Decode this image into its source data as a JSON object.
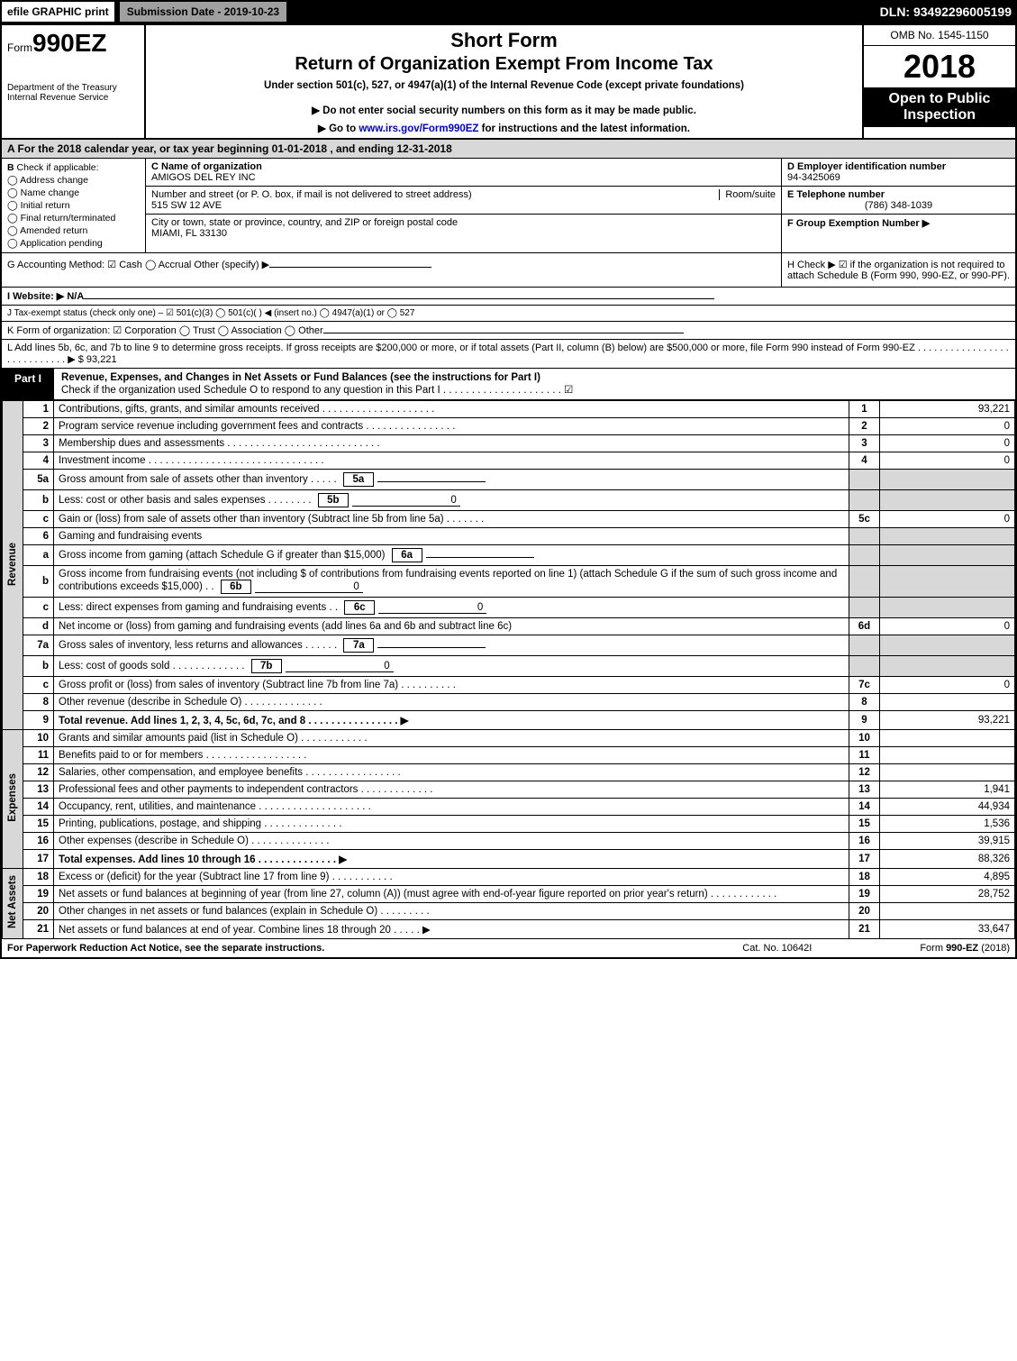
{
  "top": {
    "efile": "efile GRAPHIC print",
    "submission": "Submission Date - 2019-10-23",
    "dln": "DLN: 93492296005199"
  },
  "header": {
    "form_prefix": "Form",
    "form_num": "990EZ",
    "dept1": "Department of the Treasury",
    "dept2": "Internal Revenue Service",
    "short_form": "Short Form",
    "return": "Return of Organization Exempt From Income Tax",
    "under": "Under section 501(c), 527, or 4947(a)(1) of the Internal Revenue Code (except private foundations)",
    "donot": "▶ Do not enter social security numbers on this form as it may be made public.",
    "goto_pre": "▶ Go to ",
    "goto_link": "www.irs.gov/Form990EZ",
    "goto_post": " for instructions and the latest information.",
    "omb": "OMB No. 1545-1150",
    "year": "2018",
    "open": "Open to Public Inspection"
  },
  "row_a": "A  For the 2018 calendar year, or tax year beginning 01-01-2018           , and ending 12-31-2018",
  "b": {
    "label": "B",
    "check": "Check if applicable:",
    "items": [
      "Address change",
      "Name change",
      "Initial return",
      "Final return/terminated",
      "Amended return",
      "Application pending"
    ]
  },
  "c": {
    "name_lbl": "C Name of organization",
    "name": "AMIGOS DEL REY INC",
    "street_lbl": "Number and street (or P. O. box, if mail is not delivered to street address)",
    "room_lbl": "Room/suite",
    "street": "515 SW 12 AVE",
    "city_lbl": "City or town, state or province, country, and ZIP or foreign postal code",
    "city": "MIAMI, FL  33130"
  },
  "d": {
    "ein_lbl": "D Employer identification number",
    "ein": "94-3425069",
    "tel_lbl": "E Telephone number",
    "tel": "(786) 348-1039",
    "grp_lbl": "F Group Exemption Number   ▶"
  },
  "g": "G Accounting Method:   ☑ Cash   ◯ Accrual   Other (specify) ▶",
  "h": "H   Check ▶ ☑ if the organization is not required to attach Schedule B (Form 990, 990-EZ, or 990-PF).",
  "i": "I Website: ▶ N/A",
  "j": "J Tax-exempt status (check only one) – ☑ 501(c)(3)  ◯ 501(c)(  ) ◀ (insert no.)  ◯ 4947(a)(1) or  ◯ 527",
  "k": "K Form of organization:   ☑ Corporation   ◯ Trust   ◯ Association   ◯ Other",
  "l": "L Add lines 5b, 6c, and 7b to line 9 to determine gross receipts. If gross receipts are $200,000 or more, or if total assets (Part II, column (B) below) are $500,000 or more, file Form 990 instead of Form 990-EZ  .  .  .  .  .  .  .  .  .  .  .  .  .  .  .  .  .  .  .  .  .  .  .  .  .  .  .  .  ▶ $ 93,221",
  "part1": {
    "tag": "Part I",
    "title": "Revenue, Expenses, and Changes in Net Assets or Fund Balances (see the instructions for Part I)",
    "sub": "Check if the organization used Schedule O to respond to any question in this Part I  .  .  .  .  .  .  .  .  .  .  .  .  .  .  .  .  .  .  .  .  .  ☑"
  },
  "sections": {
    "revenue": "Revenue",
    "expenses": "Expenses",
    "netassets": "Net Assets"
  },
  "rows": [
    {
      "n": "1",
      "d": "Contributions, gifts, grants, and similar amounts received  .  .  .  .  .  .  .  .  .  .  .  .  .  .  .  .  .  .  .  .",
      "box": "1",
      "amt": "93,221"
    },
    {
      "n": "2",
      "d": "Program service revenue including government fees and contracts  .  .  .  .  .  .  .  .  .  .  .  .  .  .  .  .",
      "box": "2",
      "amt": "0"
    },
    {
      "n": "3",
      "d": "Membership dues and assessments  .  .  .  .  .  .  .  .  .  .  .  .  .  .  .  .  .  .  .  .  .  .  .  .  .  .  .",
      "box": "3",
      "amt": "0"
    },
    {
      "n": "4",
      "d": "Investment income  .  .  .  .  .  .  .  .  .  .  .  .  .  .  .  .  .  .  .  .  .  .  .  .  .  .  .  .  .  .  .",
      "box": "4",
      "amt": "0"
    },
    {
      "n": "5a",
      "d": "Gross amount from sale of assets other than inventory  .  .  .  .  .",
      "sub": "5a",
      "subamt": ""
    },
    {
      "n": "b",
      "d": "Less: cost or other basis and sales expenses  .  .  .  .  .  .  .  .",
      "sub": "5b",
      "subamt": "0"
    },
    {
      "n": "c",
      "d": "Gain or (loss) from sale of assets other than inventory (Subtract line 5b from line 5a)  .  .  .  .  .  .  .",
      "box": "5c",
      "amt": "0"
    },
    {
      "n": "6",
      "d": "Gaming and fundraising events"
    },
    {
      "n": "a",
      "d": "Gross income from gaming (attach Schedule G if greater than $15,000)",
      "sub": "6a",
      "subamt": ""
    },
    {
      "n": "b",
      "d": "Gross income from fundraising events (not including $                  of contributions from fundraising events reported on line 1) (attach Schedule G if the sum of such gross income and contributions exceeds $15,000)    .   .",
      "sub": "6b",
      "subamt": "0"
    },
    {
      "n": "c",
      "d": "Less: direct expenses from gaming and fundraising events    .   .",
      "sub": "6c",
      "subamt": "0"
    },
    {
      "n": "d",
      "d": "Net income or (loss) from gaming and fundraising events (add lines 6a and 6b and subtract line 6c)",
      "box": "6d",
      "amt": "0"
    },
    {
      "n": "7a",
      "d": "Gross sales of inventory, less returns and allowances  .  .  .  .  .  .",
      "sub": "7a",
      "subamt": ""
    },
    {
      "n": "b",
      "d": "Less: cost of goods sold       .  .  .  .  .  .  .  .  .  .  .  .  .",
      "sub": "7b",
      "subamt": "0"
    },
    {
      "n": "c",
      "d": "Gross profit or (loss) from sales of inventory (Subtract line 7b from line 7a)  .  .  .  .  .  .  .  .  .  .",
      "box": "7c",
      "amt": "0"
    },
    {
      "n": "8",
      "d": "Other revenue (describe in Schedule O)               .  .  .  .  .  .  .  .  .  .  .  .  .  .",
      "box": "8",
      "amt": ""
    },
    {
      "n": "9",
      "d": "Total revenue. Add lines 1, 2, 3, 4, 5c, 6d, 7c, and 8  .  .  .  .  .  .  .  .  .  .  .  .  .  .  .  .  ▶",
      "box": "9",
      "amt": "93,221",
      "bold": true
    }
  ],
  "exp_rows": [
    {
      "n": "10",
      "d": "Grants and similar amounts paid (list in Schedule O)         .  .  .  .  .  .  .  .  .  .  .  .",
      "box": "10",
      "amt": ""
    },
    {
      "n": "11",
      "d": "Benefits paid to or for members           .  .  .  .  .  .  .  .  .  .  .  .  .  .  .  .  .  .",
      "box": "11",
      "amt": ""
    },
    {
      "n": "12",
      "d": "Salaries, other compensation, and employee benefits  .  .  .  .  .  .  .  .  .  .  .  .  .  .  .  .  .",
      "box": "12",
      "amt": ""
    },
    {
      "n": "13",
      "d": "Professional fees and other payments to independent contractors  .  .  .  .  .  .  .  .  .  .  .  .  .",
      "box": "13",
      "amt": "1,941"
    },
    {
      "n": "14",
      "d": "Occupancy, rent, utilities, and maintenance  .  .  .  .  .  .  .  .  .  .  .  .  .  .  .  .  .  .  .  .",
      "box": "14",
      "amt": "44,934"
    },
    {
      "n": "15",
      "d": "Printing, publications, postage, and shipping          .  .  .  .  .  .  .  .  .  .  .  .  .  .",
      "box": "15",
      "amt": "1,536"
    },
    {
      "n": "16",
      "d": "Other expenses (describe in Schedule O)           .  .  .  .  .  .  .  .  .  .  .  .  .  .",
      "box": "16",
      "amt": "39,915"
    },
    {
      "n": "17",
      "d": "Total expenses. Add lines 10 through 16         .  .  .  .  .  .  .  .  .  .  .  .  .  .  ▶",
      "box": "17",
      "amt": "88,326",
      "bold": true
    }
  ],
  "na_rows": [
    {
      "n": "18",
      "d": "Excess or (deficit) for the year (Subtract line 17 from line 9)       .  .  .  .  .  .  .  .  .  .  .",
      "box": "18",
      "amt": "4,895"
    },
    {
      "n": "19",
      "d": "Net assets or fund balances at beginning of year (from line 27, column (A)) (must agree with end-of-year figure reported on prior year's return)          .  .  .  .  .  .  .  .  .  .  .  .",
      "box": "19",
      "amt": "28,752"
    },
    {
      "n": "20",
      "d": "Other changes in net assets or fund balances (explain in Schedule O)    .  .  .  .  .  .  .  .  .",
      "box": "20",
      "amt": ""
    },
    {
      "n": "21",
      "d": "Net assets or fund balances at end of year. Combine lines 18 through 20       .  .  .  .  .  ▶",
      "box": "21",
      "amt": "33,647"
    }
  ],
  "footer": {
    "left": "For Paperwork Reduction Act Notice, see the separate instructions.",
    "mid": "Cat. No. 10642I",
    "right": "Form 990-EZ (2018)"
  }
}
